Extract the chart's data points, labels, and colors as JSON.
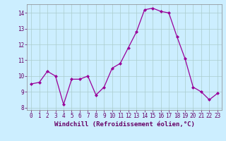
{
  "x": [
    0,
    1,
    2,
    3,
    4,
    5,
    6,
    7,
    8,
    9,
    10,
    11,
    12,
    13,
    14,
    15,
    16,
    17,
    18,
    19,
    20,
    21,
    22,
    23
  ],
  "y": [
    9.5,
    9.6,
    10.3,
    10.0,
    8.2,
    9.8,
    9.8,
    10.0,
    8.8,
    9.3,
    10.5,
    10.8,
    11.8,
    12.8,
    14.2,
    14.3,
    14.1,
    14.0,
    12.5,
    11.1,
    9.3,
    9.0,
    8.5,
    8.9
  ],
  "xlim": [
    -0.5,
    23.5
  ],
  "ylim": [
    7.85,
    14.55
  ],
  "xticks": [
    0,
    1,
    2,
    3,
    4,
    5,
    6,
    7,
    8,
    9,
    10,
    11,
    12,
    13,
    14,
    15,
    16,
    17,
    18,
    19,
    20,
    21,
    22,
    23
  ],
  "yticks": [
    8,
    9,
    10,
    11,
    12,
    13,
    14
  ],
  "xlabel": "Windchill (Refroidissement éolien,°C)",
  "line_color": "#990099",
  "marker": "D",
  "marker_size": 2.0,
  "bg_color": "#cceeff",
  "grid_color": "#aacccc",
  "label_fontsize": 6.5,
  "tick_fontsize": 5.5
}
